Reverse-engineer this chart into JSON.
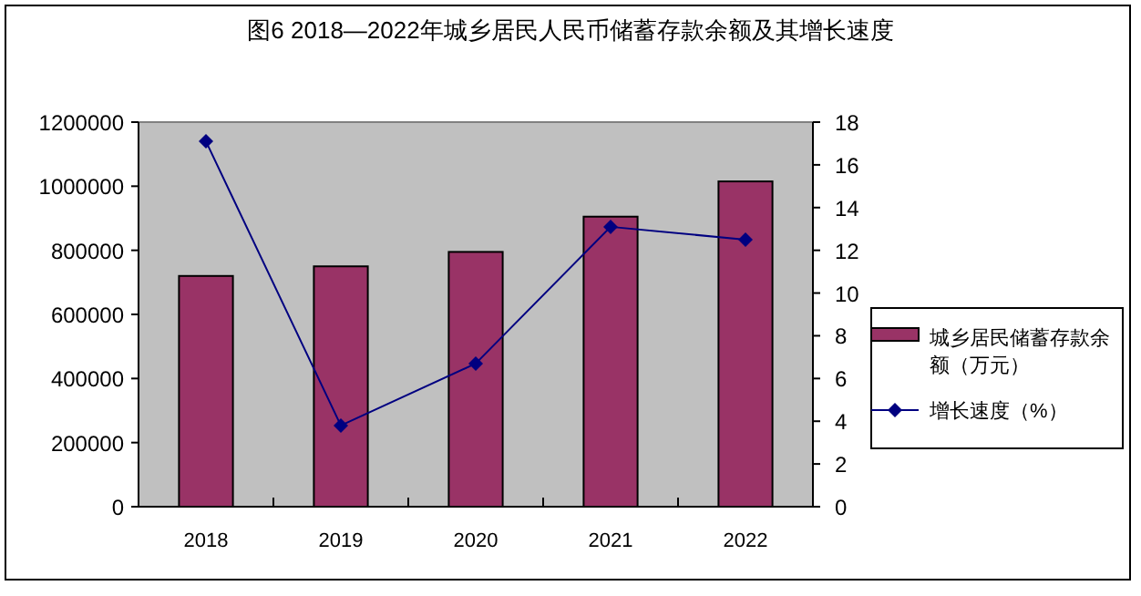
{
  "chart_data": {
    "type": "bar",
    "title": "图6 2018—2022年城乡居民人民币储蓄存款余额及其增长速度",
    "categories": [
      "2018",
      "2019",
      "2020",
      "2021",
      "2022"
    ],
    "series": [
      {
        "name": "城乡居民储蓄存款余额（万元）",
        "color": "#993366",
        "values": [
          720000,
          750000,
          795000,
          905000,
          1015000
        ]
      },
      {
        "name": "增长速度（%）",
        "type": "line",
        "axis": "y2",
        "color": "#000080",
        "marker": "diamond",
        "values": [
          17.1,
          3.8,
          6.7,
          13.1,
          12.5
        ]
      }
    ],
    "ylim": [
      0,
      1200000
    ],
    "yticks": [
      0,
      200000,
      400000,
      600000,
      800000,
      1000000,
      1200000
    ],
    "y2lim": [
      0,
      18
    ],
    "y2ticks": [
      0,
      2,
      4,
      6,
      8,
      10,
      12,
      14,
      16,
      18
    ],
    "legend": "right",
    "grid": false
  }
}
